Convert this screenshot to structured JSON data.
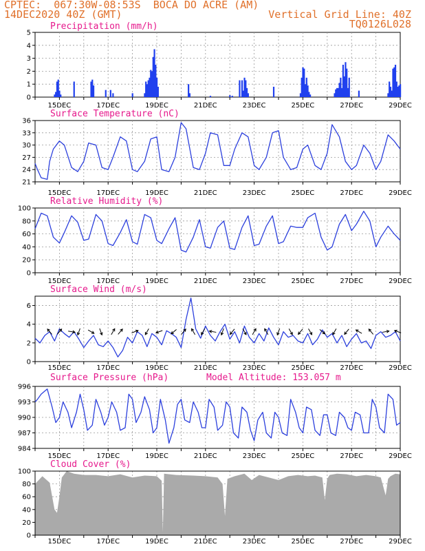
{
  "header": {
    "line1_left": "CPTEC:  067:30W-08:53S  BOCA DO ACRE (AM)",
    "line2_left": "14DEC2020 40Z (GMT)",
    "line2_right": "Vertical Grid Line: 40Z",
    "line3_right": "TQ0126L028"
  },
  "colors": {
    "header": "#e0702a",
    "title": "#e6198c",
    "line": "#2b3fdd",
    "bar": "#2040ee",
    "cloud": "#aaaaaa"
  },
  "x_axis": {
    "start_day": 14,
    "end_day": 29,
    "tick_labels": [
      "15DEC",
      "17DEC",
      "19DEC",
      "21DEC",
      "23DEC",
      "25DEC",
      "27DEC",
      "29DEC"
    ]
  },
  "chart_data": [
    {
      "id": "precip",
      "type": "bar",
      "title": "Precipitation (mm/h)",
      "ylim": [
        0,
        5
      ],
      "yticks": [
        0,
        1,
        2,
        3,
        4,
        5
      ],
      "x_unit": "day of December 2020",
      "x": [
        14.8,
        14.85,
        14.9,
        14.95,
        15.0,
        15.05,
        15.6,
        16.3,
        16.35,
        16.4,
        16.9,
        17.1,
        17.2,
        18.0,
        18.5,
        18.55,
        18.6,
        18.65,
        18.7,
        18.75,
        18.8,
        18.85,
        18.9,
        18.95,
        19.0,
        19.05,
        20.3,
        20.35,
        21.2,
        22.0,
        22.1,
        22.4,
        22.5,
        22.55,
        22.6,
        22.65,
        22.7,
        22.75,
        23.8,
        24.9,
        24.95,
        25.0,
        25.05,
        25.1,
        25.15,
        25.2,
        25.25,
        25.3,
        26.3,
        26.35,
        26.4,
        26.45,
        26.5,
        26.55,
        26.6,
        26.65,
        26.7,
        26.75,
        26.8,
        26.85,
        26.9,
        27.3,
        28.5,
        28.55,
        28.6,
        28.65,
        28.7,
        28.75,
        28.8,
        28.85,
        28.9,
        28.95,
        29.0
      ],
      "values": [
        0.2,
        0.4,
        1.2,
        1.35,
        0.5,
        0.2,
        1.2,
        1.2,
        1.35,
        0.9,
        0.55,
        0.55,
        0.3,
        0.3,
        0.3,
        1.2,
        1.0,
        1.3,
        1.5,
        2.1,
        2.0,
        3.1,
        3.7,
        2.5,
        1.5,
        0.8,
        1.0,
        0.3,
        0.1,
        0.15,
        0.1,
        1.3,
        1.3,
        0.5,
        1.5,
        1.3,
        0.7,
        0.3,
        0.8,
        0.3,
        1.5,
        2.3,
        2.2,
        1.0,
        1.5,
        0.9,
        0.4,
        0.2,
        0.3,
        0.6,
        0.7,
        0.7,
        1.1,
        1.5,
        0.7,
        2.5,
        1.6,
        2.7,
        2.2,
        0.7,
        1.5,
        0.5,
        0.3,
        1.2,
        0.8,
        0.5,
        2.2,
        2.3,
        2.5,
        1.2,
        0.8,
        0.9,
        1.0
      ]
    },
    {
      "id": "temp",
      "type": "line",
      "title": "Surface Temperature (nC)",
      "ylim": [
        21,
        36
      ],
      "yticks": [
        21,
        24,
        27,
        30,
        33,
        36
      ],
      "x_unit": "day of December 2020",
      "x": [
        14.0,
        14.1,
        14.25,
        14.5,
        14.6,
        14.75,
        15.0,
        15.2,
        15.5,
        15.75,
        16.0,
        16.2,
        16.5,
        16.75,
        17.0,
        17.2,
        17.5,
        17.75,
        18.0,
        18.2,
        18.5,
        18.75,
        19.0,
        19.2,
        19.5,
        19.75,
        20.0,
        20.2,
        20.5,
        20.75,
        21.0,
        21.2,
        21.5,
        21.75,
        22.0,
        22.2,
        22.5,
        22.75,
        23.0,
        23.2,
        23.5,
        23.75,
        24.0,
        24.2,
        24.5,
        24.75,
        25.0,
        25.2,
        25.5,
        25.75,
        26.0,
        26.2,
        26.5,
        26.75,
        27.0,
        27.2,
        27.5,
        27.75,
        28.0,
        28.2,
        28.5,
        28.75,
        29.0
      ],
      "values": [
        25.5,
        24,
        22,
        21.6,
        26,
        29,
        31,
        30,
        24.5,
        23.5,
        26,
        30.5,
        30,
        24.5,
        24,
        27,
        32,
        31,
        24,
        23.5,
        26,
        31.5,
        32,
        24,
        23.5,
        27,
        35.5,
        34,
        24.5,
        24,
        28,
        33,
        32.5,
        25,
        25,
        29,
        33,
        32,
        25,
        24,
        27,
        33,
        33.5,
        27,
        24,
        24.5,
        29,
        30,
        25,
        24,
        28,
        35,
        32,
        26,
        24,
        25,
        30,
        28,
        24,
        26,
        32.5,
        31,
        29
      ]
    },
    {
      "id": "rh",
      "type": "line",
      "title": "Relative Humidity (%)",
      "ylim": [
        0,
        100
      ],
      "yticks": [
        0,
        20,
        40,
        60,
        80,
        100
      ],
      "x_unit": "day of December 2020",
      "x": [
        14.0,
        14.25,
        14.5,
        14.75,
        15.0,
        15.2,
        15.5,
        15.75,
        16.0,
        16.2,
        16.5,
        16.75,
        17.0,
        17.2,
        17.5,
        17.75,
        18.0,
        18.2,
        18.5,
        18.75,
        19.0,
        19.2,
        19.5,
        19.75,
        20.0,
        20.2,
        20.5,
        20.75,
        21.0,
        21.2,
        21.5,
        21.75,
        22.0,
        22.2,
        22.5,
        22.75,
        23.0,
        23.2,
        23.5,
        23.75,
        24.0,
        24.2,
        24.5,
        24.75,
        25.0,
        25.2,
        25.5,
        25.75,
        26.0,
        26.2,
        26.5,
        26.75,
        27.0,
        27.2,
        27.5,
        27.75,
        28.0,
        28.2,
        28.5,
        28.75,
        29.0
      ],
      "values": [
        68,
        92,
        88,
        55,
        46,
        62,
        88,
        78,
        50,
        52,
        90,
        80,
        45,
        42,
        62,
        82,
        48,
        44,
        90,
        85,
        50,
        45,
        68,
        85,
        35,
        32,
        55,
        82,
        40,
        38,
        70,
        80,
        38,
        36,
        70,
        88,
        42,
        44,
        72,
        88,
        45,
        48,
        72,
        70,
        70,
        85,
        92,
        55,
        35,
        40,
        75,
        90,
        65,
        75,
        95,
        80,
        40,
        55,
        72,
        60,
        50
      ]
    },
    {
      "id": "wind",
      "type": "line",
      "title": "Surface Wind (m/s)",
      "ylim": [
        0,
        7
      ],
      "yticks": [
        0,
        2,
        4,
        6
      ],
      "x_unit": "day of December 2020",
      "x": [
        14.0,
        14.2,
        14.4,
        14.6,
        14.8,
        15.0,
        15.2,
        15.4,
        15.6,
        15.8,
        16.0,
        16.2,
        16.4,
        16.6,
        16.8,
        17.0,
        17.2,
        17.4,
        17.6,
        17.8,
        18.0,
        18.2,
        18.4,
        18.6,
        18.8,
        19.0,
        19.2,
        19.4,
        19.6,
        19.8,
        20.0,
        20.2,
        20.4,
        20.6,
        20.8,
        21.0,
        21.2,
        21.4,
        21.6,
        21.8,
        22.0,
        22.2,
        22.4,
        22.6,
        22.8,
        23.0,
        23.2,
        23.4,
        23.6,
        23.8,
        24.0,
        24.2,
        24.4,
        24.6,
        24.8,
        25.0,
        25.2,
        25.4,
        25.6,
        25.8,
        26.0,
        26.2,
        26.4,
        26.6,
        26.8,
        27.0,
        27.2,
        27.4,
        27.6,
        27.8,
        28.0,
        28.2,
        28.4,
        28.6,
        28.8,
        29.0
      ],
      "values": [
        2.5,
        2.0,
        2.8,
        3.2,
        2.2,
        3.5,
        3.0,
        2.6,
        3.2,
        2.4,
        1.5,
        2.2,
        2.8,
        1.8,
        1.6,
        2.2,
        1.5,
        0.5,
        1.2,
        2.6,
        2.0,
        3.2,
        2.8,
        1.6,
        3.0,
        2.6,
        1.8,
        3.3,
        3.0,
        2.6,
        1.5,
        4.5,
        6.8,
        3.5,
        2.5,
        3.8,
        2.8,
        2.2,
        3.2,
        4.0,
        2.4,
        3.2,
        2.0,
        3.8,
        2.6,
        2.0,
        3.0,
        2.2,
        3.6,
        2.6,
        1.8,
        3.2,
        2.6,
        2.8,
        2.2,
        2.0,
        3.0,
        1.8,
        2.4,
        3.4,
        2.6,
        3.0,
        2.0,
        2.8,
        1.6,
        2.4,
        3.0,
        2.0,
        2.2,
        1.4,
        2.8,
        3.2,
        2.6,
        2.8,
        3.2,
        2.2
      ],
      "arrows_x": [
        14.6,
        15.0,
        15.5,
        15.8,
        16.3,
        16.7,
        17.2,
        17.5,
        18.1,
        18.6,
        19.1,
        19.7,
        20.1,
        20.5,
        20.9,
        21.3,
        21.7,
        22.1,
        22.6,
        23.0,
        23.5,
        24.0,
        24.5,
        24.9,
        25.3,
        25.8,
        26.3,
        26.8,
        27.3,
        27.8,
        28.4,
        28.9
      ],
      "arrows_dir": [
        320,
        40,
        100,
        200,
        120,
        160,
        30,
        40,
        70,
        210,
        250,
        230,
        40,
        330,
        210,
        280,
        200,
        220,
        150,
        30,
        330,
        200,
        150,
        220,
        150,
        130,
        210,
        220,
        300,
        320,
        80,
        290
      ]
    },
    {
      "id": "pres",
      "type": "line",
      "title": "Surface Pressure (hPa)",
      "subtitle": "Model Altitude: 153.057 m",
      "ylim": [
        984,
        996
      ],
      "yticks": [
        984,
        987,
        990,
        993,
        996
      ],
      "ytick_labels": [
        "984",
        "987",
        "990",
        "993",
        "996"
      ],
      "x_unit": "day of December 2020",
      "x": [
        14.0,
        14.1,
        14.25,
        14.5,
        14.7,
        14.85,
        15.0,
        15.15,
        15.35,
        15.5,
        15.7,
        15.85,
        16.0,
        16.15,
        16.35,
        16.5,
        16.7,
        16.85,
        17.0,
        17.15,
        17.35,
        17.5,
        17.7,
        17.85,
        18.0,
        18.15,
        18.35,
        18.5,
        18.7,
        18.85,
        19.0,
        19.15,
        19.35,
        19.5,
        19.7,
        19.85,
        20.0,
        20.15,
        20.35,
        20.5,
        20.7,
        20.85,
        21.0,
        21.15,
        21.35,
        21.5,
        21.7,
        21.85,
        22.0,
        22.15,
        22.35,
        22.5,
        22.7,
        22.85,
        23.0,
        23.15,
        23.35,
        23.5,
        23.7,
        23.85,
        24.0,
        24.15,
        24.35,
        24.5,
        24.7,
        24.85,
        25.0,
        25.15,
        25.35,
        25.5,
        25.7,
        25.85,
        26.0,
        26.15,
        26.35,
        26.5,
        26.7,
        26.85,
        27.0,
        27.15,
        27.35,
        27.5,
        27.7,
        27.85,
        28.0,
        28.15,
        28.35,
        28.5,
        28.7,
        28.85,
        29.0
      ],
      "values": [
        993,
        993.5,
        994.5,
        995.5,
        992,
        989,
        990,
        993,
        991,
        988,
        991,
        994.5,
        991.5,
        987.5,
        988.5,
        993.5,
        991,
        988.5,
        990,
        993,
        991,
        987.5,
        988,
        994.5,
        993.5,
        989,
        991,
        994,
        991.5,
        987,
        988,
        993.5,
        989.5,
        985,
        988,
        992.5,
        993.5,
        989.5,
        989,
        993,
        991,
        988,
        988,
        993.5,
        992,
        987.5,
        988.5,
        993,
        992,
        987,
        986,
        992,
        991,
        987.5,
        985.5,
        989.5,
        991,
        987,
        986,
        991,
        990,
        987,
        986.5,
        993.5,
        991,
        988,
        987,
        992,
        991.5,
        987.5,
        986.5,
        990.5,
        990.5,
        987,
        986.5,
        991,
        990,
        988,
        987.5,
        991,
        990.5,
        987,
        987,
        993.5,
        992,
        988,
        987,
        994.5,
        993.5,
        988.5,
        989
      ]
    },
    {
      "id": "cloud",
      "type": "area",
      "title": "Cloud Cover (%)",
      "ylim": [
        0,
        100
      ],
      "yticks": [
        0,
        20,
        40,
        60,
        80,
        100
      ],
      "x_unit": "day of December 2020",
      "x": [
        14.0,
        14.3,
        14.6,
        14.8,
        14.9,
        15.0,
        15.1,
        15.3,
        15.6,
        16.0,
        16.5,
        17.0,
        17.5,
        18.0,
        18.5,
        19.0,
        19.2,
        19.25,
        19.3,
        19.8,
        20.5,
        21.0,
        21.5,
        21.7,
        21.8,
        21.9,
        22.2,
        22.6,
        22.9,
        23.2,
        23.6,
        24.0,
        24.4,
        24.8,
        25.2,
        25.5,
        25.8,
        25.9,
        26.0,
        26.1,
        26.4,
        26.8,
        27.2,
        27.6,
        28.0,
        28.2,
        28.4,
        28.5,
        28.6,
        28.8,
        29.0
      ],
      "values": [
        80,
        92,
        82,
        40,
        35,
        60,
        90,
        100,
        96,
        94,
        94,
        92,
        95,
        90,
        93,
        92,
        85,
        5,
        96,
        94,
        93,
        92,
        90,
        80,
        30,
        88,
        92,
        96,
        86,
        94,
        90,
        86,
        92,
        94,
        92,
        93,
        90,
        55,
        88,
        94,
        96,
        95,
        92,
        94,
        92,
        90,
        62,
        88,
        92,
        96,
        95
      ]
    }
  ]
}
